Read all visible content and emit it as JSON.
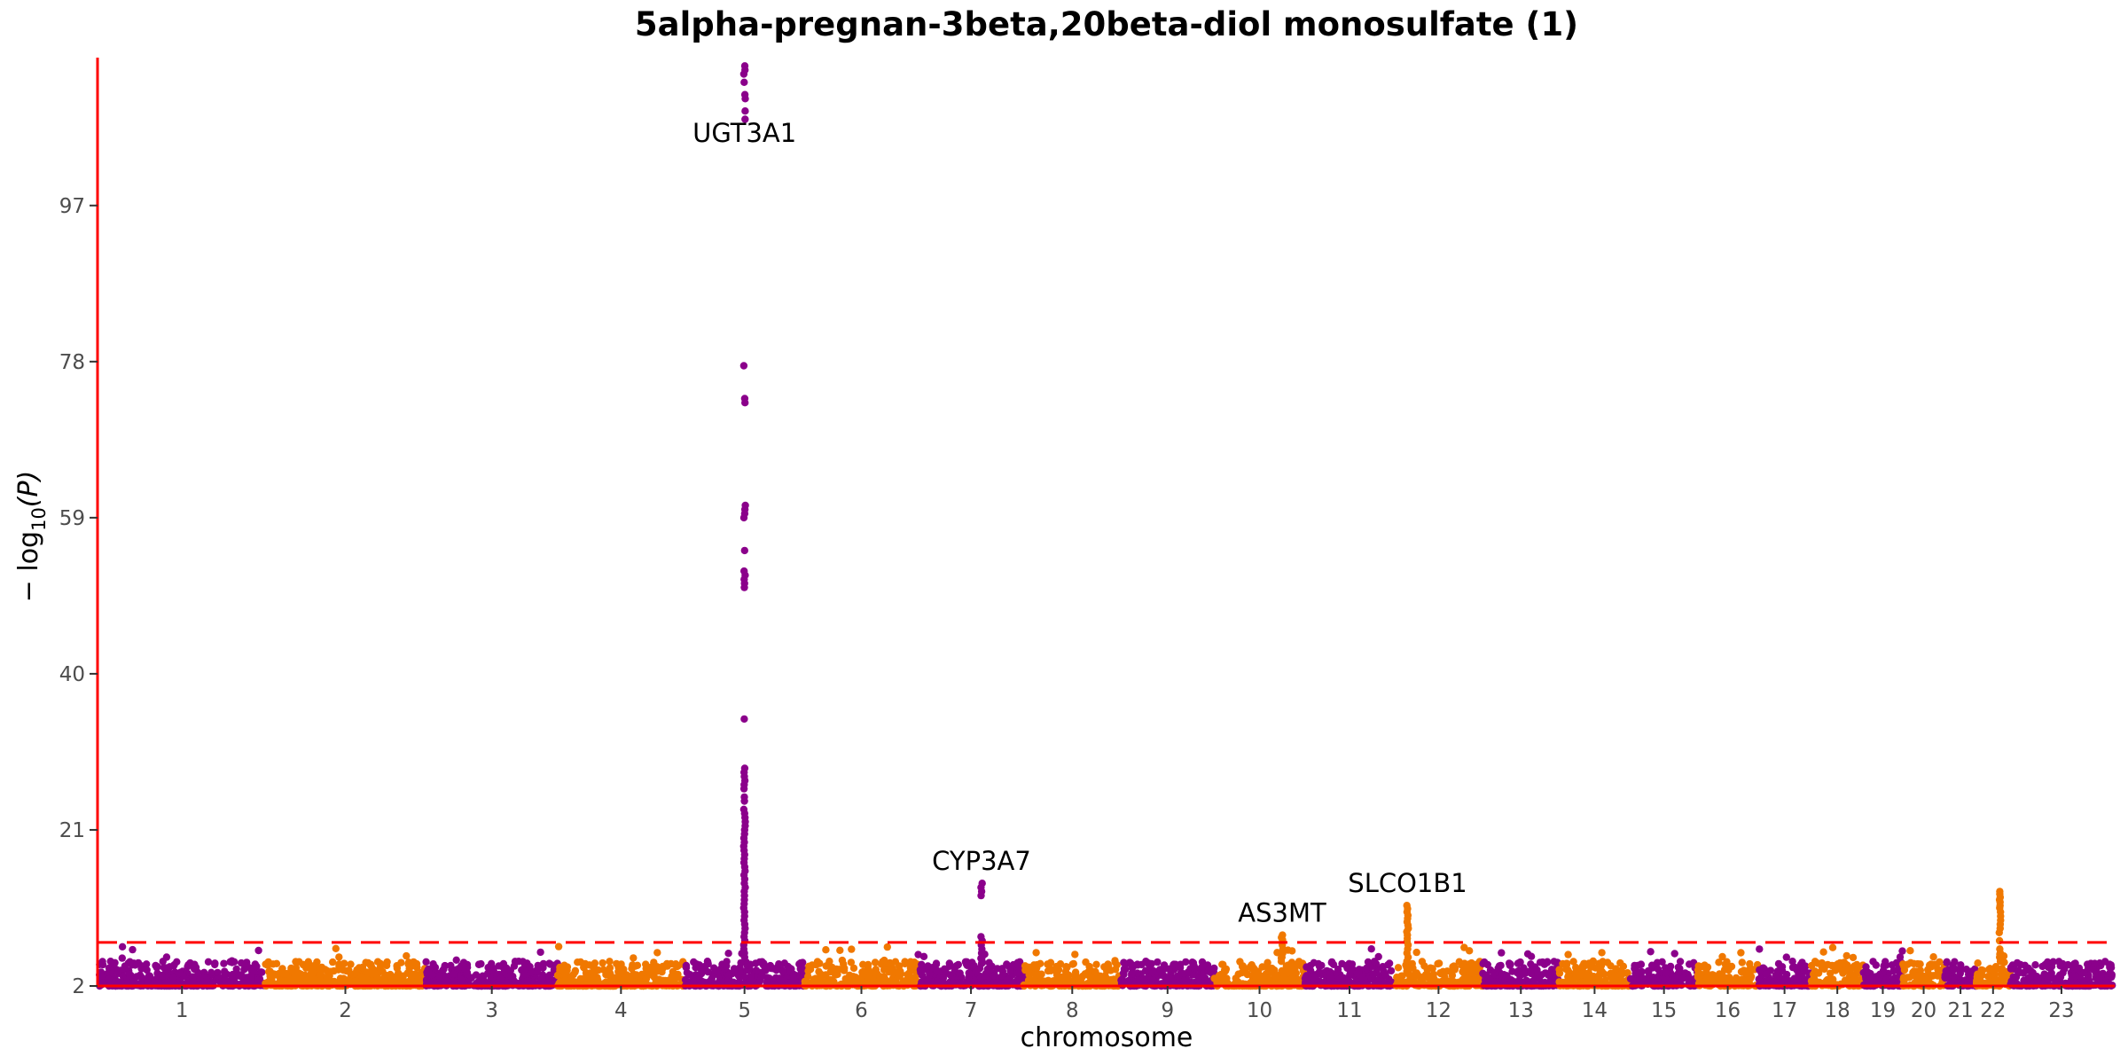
{
  "chart_data": {
    "type": "scatter",
    "subtype": "manhattan",
    "title": "5alpha-pregnan-3beta,20beta-diol monosulfate (1)",
    "xlabel": "chromosome",
    "ylabel_parts": {
      "prefix": "− log",
      "subscript": "10",
      "suffix": "(P)"
    },
    "ylim": [
      2,
      115
    ],
    "yticks": [
      2,
      21,
      40,
      59,
      78,
      97
    ],
    "threshold": 7.3,
    "colors": {
      "odd": "#8B008B",
      "even": "#F07800",
      "threshold": "#FF0000",
      "axis": "#FF0000"
    },
    "chromosomes": [
      {
        "label": "1",
        "size": 249
      },
      {
        "label": "2",
        "size": 243
      },
      {
        "label": "3",
        "size": 198
      },
      {
        "label": "4",
        "size": 191
      },
      {
        "label": "5",
        "size": 181
      },
      {
        "label": "6",
        "size": 171
      },
      {
        "label": "7",
        "size": 159
      },
      {
        "label": "8",
        "size": 146
      },
      {
        "label": "9",
        "size": 141
      },
      {
        "label": "10",
        "size": 136
      },
      {
        "label": "11",
        "size": 135
      },
      {
        "label": "12",
        "size": 133
      },
      {
        "label": "13",
        "size": 115
      },
      {
        "label": "14",
        "size": 107
      },
      {
        "label": "15",
        "size": 102
      },
      {
        "label": "16",
        "size": 90
      },
      {
        "label": "17",
        "size": 81
      },
      {
        "label": "18",
        "size": 78
      },
      {
        "label": "19",
        "size": 59
      },
      {
        "label": "20",
        "size": 64
      },
      {
        "label": "21",
        "size": 47
      },
      {
        "label": "22",
        "size": 51
      },
      {
        "label": "23",
        "size": 155
      }
    ],
    "peaks": [
      {
        "chr": "5",
        "pos_frac": 0.5,
        "values": [
          114,
          113.5,
          113,
          112,
          110.5,
          110,
          108.5,
          107.5,
          77.5,
          73.5,
          73,
          60.5,
          60,
          59.5,
          59,
          55,
          52.5,
          52,
          51.5,
          51,
          50.5,
          34.5,
          28.5,
          28,
          27.5,
          27,
          26.5,
          26,
          25,
          24.5,
          23.5,
          23,
          22.5,
          22,
          21.5,
          21,
          20.5,
          20,
          19.5,
          19,
          18.5,
          18,
          17.5,
          17,
          16.5,
          16,
          15.5,
          15,
          14.5,
          14,
          13.5,
          13,
          12.5,
          12,
          11.5,
          11,
          10.5,
          10,
          9.5,
          9,
          8.5,
          8,
          7.5,
          7,
          6.5,
          6,
          5.5
        ]
      },
      {
        "chr": "7",
        "pos_frac": 0.6,
        "values": [
          14.5,
          14,
          13.5,
          13,
          8,
          7.5,
          7,
          6.5,
          6,
          5.5,
          5
        ]
      },
      {
        "chr": "10",
        "pos_frac": 0.75,
        "values": [
          8.2,
          7.9,
          7.6,
          7,
          6.5,
          6,
          5.5,
          5
        ]
      },
      {
        "chr": "12",
        "pos_frac": 0.15,
        "values": [
          11.8,
          11.4,
          11,
          10.6,
          10.2,
          9.8,
          9.4,
          9,
          8.6,
          8.2,
          7.8,
          7.4,
          7,
          6.5,
          6,
          5.5,
          5
        ]
      },
      {
        "chr": "22",
        "pos_frac": 0.7,
        "values": [
          13.5,
          13.2,
          12.8,
          12.5,
          12.2,
          11.8,
          11.5,
          11,
          10.5,
          10,
          9.5,
          9,
          8.5,
          7.5,
          6.5,
          6,
          5.5,
          5
        ]
      }
    ],
    "annotations": [
      {
        "text": "UGT3A1",
        "chr": "5",
        "pos_frac": 0.5,
        "y": 108.5,
        "placement": "below"
      },
      {
        "text": "CYP3A7",
        "chr": "7",
        "pos_frac": 0.6,
        "y": 14.5,
        "placement": "above"
      },
      {
        "text": "AS3MT",
        "chr": "10",
        "pos_frac": 0.75,
        "y": 8.2,
        "placement": "above"
      },
      {
        "text": "SLCO1B1",
        "chr": "12",
        "pos_frac": 0.15,
        "y": 11.8,
        "placement": "above"
      }
    ]
  }
}
